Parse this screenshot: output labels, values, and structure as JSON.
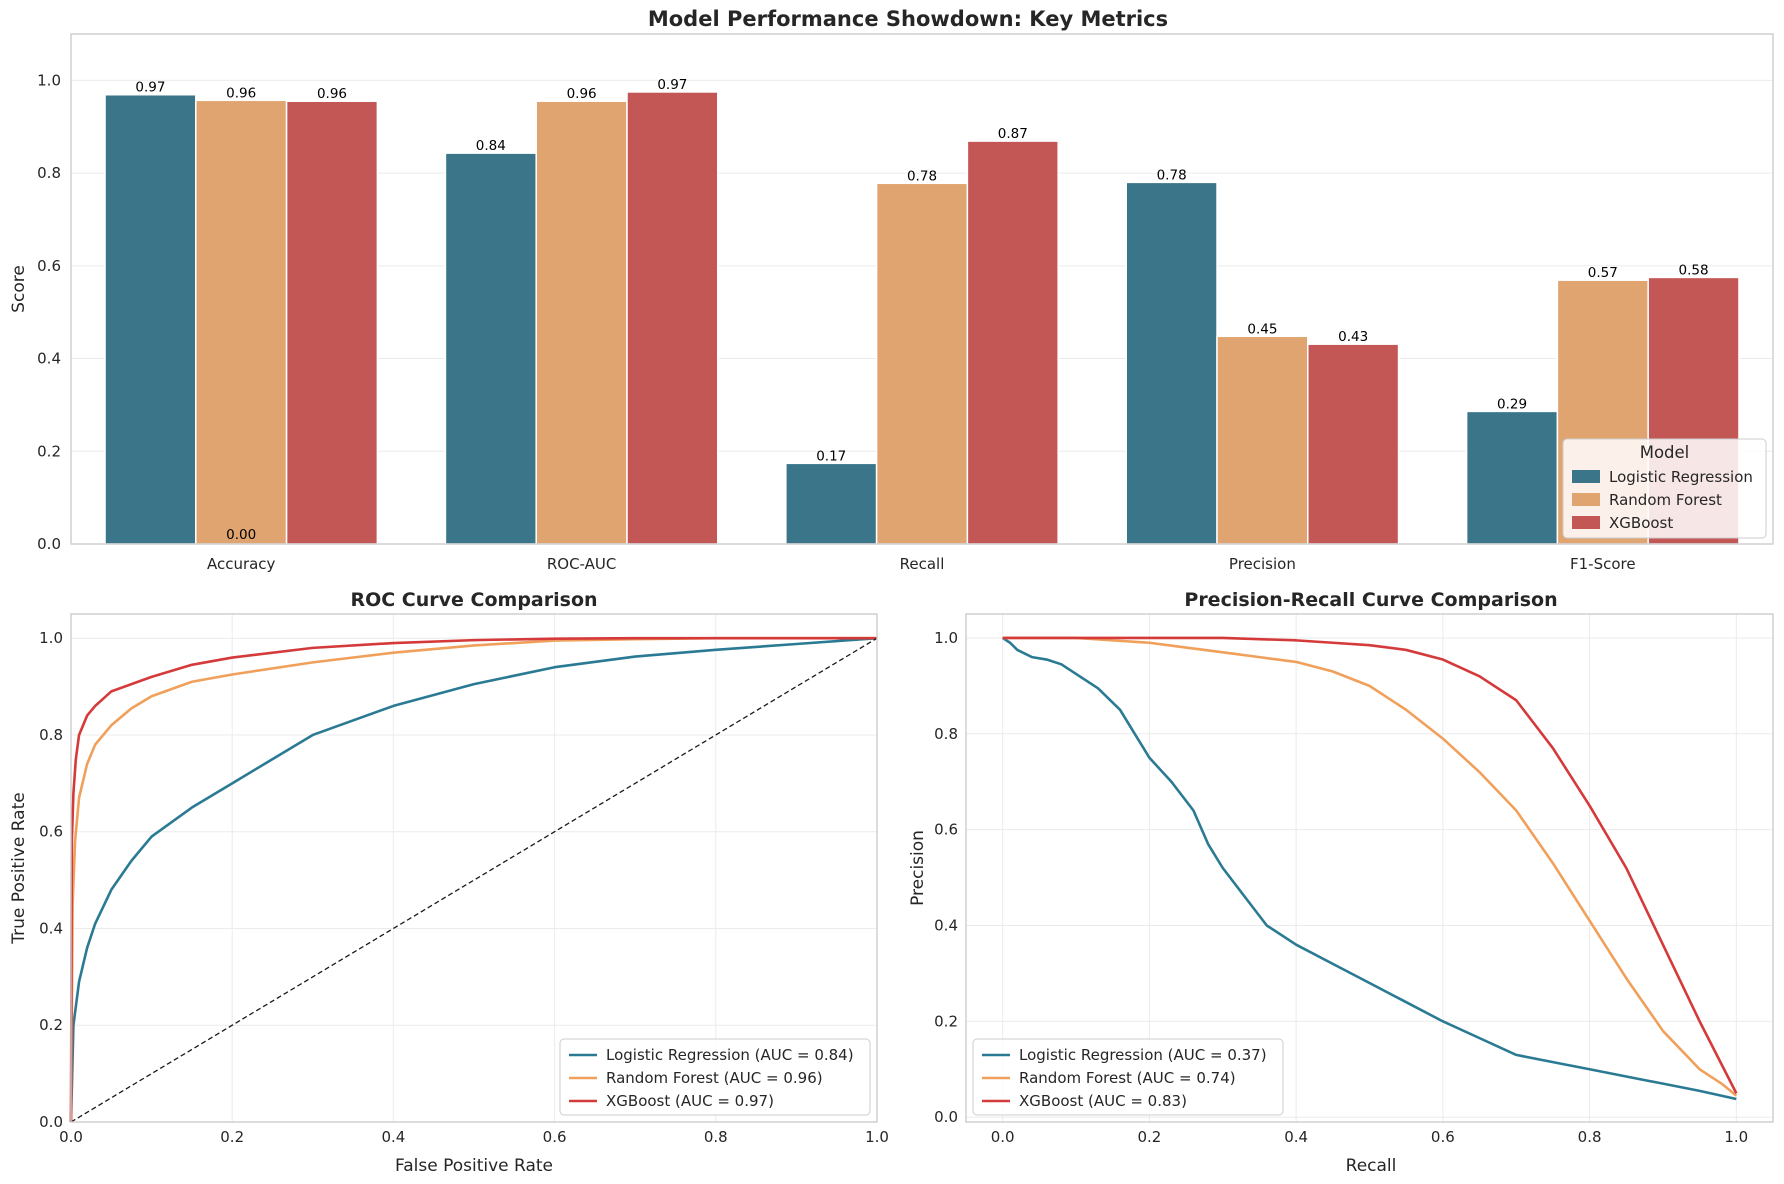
{
  "figure_title": "Model Performance Showdown: Key Metrics",
  "colors": {
    "Logistic Regression": "#3a7589",
    "Random Forest": "#e0a471",
    "XGBoost": "#c25756",
    "lr_line": "#2a7a94",
    "rf_line": "#f0a05b",
    "xgb_line": "#d53a3a"
  },
  "chart_data": [
    {
      "type": "bar",
      "title": "Model Performance Showdown: Key Metrics",
      "xlabel": "",
      "ylabel": "Score",
      "ylim": [
        0,
        1.1
      ],
      "yticks": [
        "0.0",
        "0.2",
        "0.4",
        "0.6",
        "0.8",
        "1.0"
      ],
      "categories": [
        "Accuracy",
        "ROC-AUC",
        "Recall",
        "Precision",
        "F1-Score"
      ],
      "series": [
        {
          "name": "Logistic Regression",
          "values": [
            0.969,
            0.843,
            0.174,
            0.78,
            0.286
          ],
          "labels": [
            "0.97",
            "0.84",
            "0.17",
            "0.78",
            "0.29"
          ]
        },
        {
          "name": "Random Forest",
          "values": [
            0.957,
            0.955,
            0.778,
            0.448,
            0.569
          ],
          "labels": [
            "0.96",
            "0.96",
            "0.78",
            "0.45",
            "0.57"
          ]
        },
        {
          "name": "XGBoost",
          "values": [
            0.955,
            0.975,
            0.869,
            0.431,
            0.575
          ],
          "labels": [
            "0.96",
            "0.97",
            "0.87",
            "0.43",
            "0.58"
          ]
        }
      ],
      "extra_annotation": "0.00",
      "legend": {
        "title": "Model",
        "position": "lower-right",
        "entries": [
          "Logistic Regression",
          "Random Forest",
          "XGBoost"
        ]
      },
      "grid": true
    },
    {
      "type": "line",
      "title": "ROC Curve Comparison",
      "xlabel": "False Positive Rate",
      "ylabel": "True Positive Rate",
      "xlim": [
        0,
        1
      ],
      "ylim": [
        0,
        1.05
      ],
      "xticks": [
        "0.0",
        "0.2",
        "0.4",
        "0.6",
        "0.8",
        "1.0"
      ],
      "yticks": [
        "0.0",
        "0.2",
        "0.4",
        "0.6",
        "0.8",
        "1.0"
      ],
      "series": [
        {
          "name": "Logistic Regression (AUC = 0.84)",
          "x": [
            0,
            0.003,
            0.01,
            0.02,
            0.03,
            0.05,
            0.075,
            0.1,
            0.15,
            0.2,
            0.3,
            0.4,
            0.5,
            0.6,
            0.7,
            0.8,
            0.9,
            1.0
          ],
          "y": [
            0,
            0.2,
            0.29,
            0.36,
            0.41,
            0.48,
            0.54,
            0.59,
            0.65,
            0.7,
            0.8,
            0.86,
            0.905,
            0.94,
            0.962,
            0.976,
            0.988,
            1.0
          ]
        },
        {
          "name": "Random Forest (AUC = 0.96)",
          "x": [
            0,
            0.002,
            0.005,
            0.01,
            0.02,
            0.03,
            0.05,
            0.075,
            0.1,
            0.15,
            0.2,
            0.3,
            0.4,
            0.5,
            0.6,
            0.7,
            0.8,
            1.0
          ],
          "y": [
            0,
            0.45,
            0.58,
            0.67,
            0.74,
            0.78,
            0.82,
            0.855,
            0.88,
            0.91,
            0.925,
            0.95,
            0.97,
            0.985,
            0.995,
            0.998,
            1.0,
            1.0
          ]
        },
        {
          "name": "XGBoost (AUC = 0.97)",
          "x": [
            0,
            0.001,
            0.003,
            0.006,
            0.01,
            0.02,
            0.03,
            0.05,
            0.075,
            0.1,
            0.15,
            0.2,
            0.3,
            0.4,
            0.5,
            0.6,
            0.7,
            1.0
          ],
          "y": [
            0,
            0.58,
            0.68,
            0.75,
            0.8,
            0.84,
            0.86,
            0.89,
            0.905,
            0.92,
            0.945,
            0.96,
            0.98,
            0.99,
            0.996,
            0.999,
            1.0,
            1.0
          ]
        },
        {
          "name": "chance",
          "x": [
            0,
            1
          ],
          "y": [
            0,
            1
          ],
          "style": "dashed"
        }
      ],
      "legend": {
        "position": "lower-right",
        "entries": [
          "Logistic Regression (AUC = 0.84)",
          "Random Forest (AUC = 0.96)",
          "XGBoost (AUC = 0.97)"
        ]
      },
      "grid": true
    },
    {
      "type": "line",
      "title": "Precision-Recall Curve Comparison",
      "xlabel": "Recall",
      "ylabel": "Precision",
      "xlim": [
        -0.05,
        1.05
      ],
      "ylim": [
        -0.01,
        1.05
      ],
      "xticks": [
        "0.0",
        "0.2",
        "0.4",
        "0.6",
        "0.8",
        "1.0"
      ],
      "yticks": [
        "0.0",
        "0.2",
        "0.4",
        "0.6",
        "0.8",
        "1.0"
      ],
      "series": [
        {
          "name": "Logistic Regression (AUC = 0.37)",
          "x": [
            0,
            0.01,
            0.02,
            0.04,
            0.06,
            0.08,
            0.1,
            0.13,
            0.16,
            0.18,
            0.2,
            0.23,
            0.26,
            0.28,
            0.3,
            0.33,
            0.36,
            0.4,
            0.45,
            0.5,
            0.55,
            0.6,
            0.65,
            0.7,
            0.75,
            0.8,
            0.85,
            0.9,
            0.95,
            1.0
          ],
          "y": [
            1.0,
            0.99,
            0.975,
            0.96,
            0.955,
            0.945,
            0.925,
            0.895,
            0.85,
            0.8,
            0.75,
            0.7,
            0.64,
            0.57,
            0.52,
            0.46,
            0.4,
            0.36,
            0.32,
            0.28,
            0.24,
            0.2,
            0.165,
            0.13,
            0.115,
            0.1,
            0.085,
            0.07,
            0.055,
            0.038
          ]
        },
        {
          "name": "Random Forest (AUC = 0.74)",
          "x": [
            0,
            0.05,
            0.1,
            0.15,
            0.2,
            0.25,
            0.3,
            0.35,
            0.4,
            0.45,
            0.5,
            0.55,
            0.6,
            0.65,
            0.7,
            0.75,
            0.8,
            0.85,
            0.9,
            0.95,
            0.98,
            1.0
          ],
          "y": [
            1.0,
            1.0,
            1.0,
            0.995,
            0.99,
            0.98,
            0.97,
            0.96,
            0.95,
            0.93,
            0.9,
            0.85,
            0.79,
            0.72,
            0.64,
            0.53,
            0.41,
            0.29,
            0.18,
            0.1,
            0.07,
            0.045
          ]
        },
        {
          "name": "XGBoost (AUC = 0.83)",
          "x": [
            0,
            0.1,
            0.2,
            0.3,
            0.4,
            0.45,
            0.5,
            0.55,
            0.6,
            0.65,
            0.7,
            0.75,
            0.8,
            0.85,
            0.9,
            0.95,
            0.98,
            1.0
          ],
          "y": [
            1.0,
            1.0,
            1.0,
            1.0,
            0.995,
            0.99,
            0.985,
            0.975,
            0.955,
            0.92,
            0.87,
            0.77,
            0.65,
            0.52,
            0.36,
            0.2,
            0.11,
            0.05
          ]
        }
      ],
      "legend": {
        "position": "lower-left",
        "entries": [
          "Logistic Regression (AUC = 0.37)",
          "Random Forest (AUC = 0.74)",
          "XGBoost (AUC = 0.83)"
        ]
      },
      "grid": true
    }
  ]
}
